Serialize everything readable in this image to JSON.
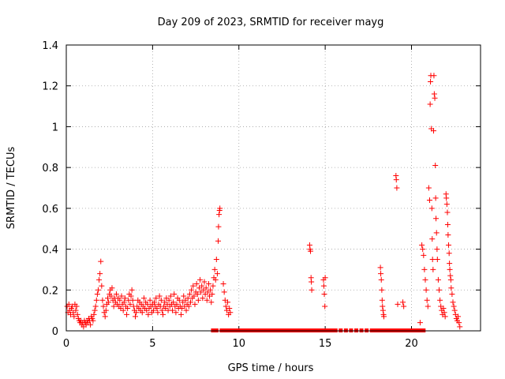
{
  "chart_data": {
    "type": "scatter",
    "title": "Day 209 of 2023, SRMTID for receiver mayg",
    "xlabel": "GPS time / hours",
    "ylabel": "SRMTID / TECUs",
    "xlim": [
      0,
      24
    ],
    "ylim": [
      0,
      1.4
    ],
    "xticks": [
      "0",
      "5",
      "10",
      "15",
      "20"
    ],
    "yticks": [
      "0",
      "0.2",
      "0.4",
      "0.6",
      "0.8",
      "1",
      "1.2",
      "1.4"
    ],
    "grid": true,
    "marker_color": "#ff0000",
    "series": [
      {
        "name": "SRMTID",
        "points": [
          [
            0.05,
            0.12
          ],
          [
            0.1,
            0.09
          ],
          [
            0.15,
            0.13
          ],
          [
            0.2,
            0.1
          ],
          [
            0.25,
            0.08
          ],
          [
            0.3,
            0.11
          ],
          [
            0.35,
            0.12
          ],
          [
            0.4,
            0.09
          ],
          [
            0.45,
            0.07
          ],
          [
            0.5,
            0.13
          ],
          [
            0.55,
            0.1
          ],
          [
            0.6,
            0.12
          ],
          [
            0.65,
            0.08
          ],
          [
            0.7,
            0.06
          ],
          [
            0.75,
            0.05
          ],
          [
            0.8,
            0.04
          ],
          [
            0.85,
            0.05
          ],
          [
            0.9,
            0.03
          ],
          [
            0.95,
            0.04
          ],
          [
            1.0,
            0.02
          ],
          [
            1.05,
            0.05
          ],
          [
            1.1,
            0.04
          ],
          [
            1.15,
            0.03
          ],
          [
            1.2,
            0.05
          ],
          [
            1.25,
            0.04
          ],
          [
            1.3,
            0.06
          ],
          [
            1.35,
            0.05
          ],
          [
            1.4,
            0.03
          ],
          [
            1.45,
            0.07
          ],
          [
            1.5,
            0.06
          ],
          [
            1.55,
            0.05
          ],
          [
            1.6,
            0.08
          ],
          [
            1.65,
            0.1
          ],
          [
            1.7,
            0.12
          ],
          [
            1.75,
            0.15
          ],
          [
            1.8,
            0.18
          ],
          [
            1.85,
            0.2
          ],
          [
            1.9,
            0.25
          ],
          [
            1.95,
            0.28
          ],
          [
            2.0,
            0.34
          ],
          [
            2.05,
            0.22
          ],
          [
            2.1,
            0.15
          ],
          [
            2.15,
            0.12
          ],
          [
            2.2,
            0.09
          ],
          [
            2.25,
            0.07
          ],
          [
            2.3,
            0.1
          ],
          [
            2.35,
            0.13
          ],
          [
            2.4,
            0.16
          ],
          [
            2.45,
            0.14
          ],
          [
            2.5,
            0.18
          ],
          [
            2.55,
            0.2
          ],
          [
            2.6,
            0.17
          ],
          [
            2.65,
            0.21
          ],
          [
            2.7,
            0.15
          ],
          [
            2.75,
            0.12
          ],
          [
            2.8,
            0.16
          ],
          [
            2.85,
            0.14
          ],
          [
            2.9,
            0.18
          ],
          [
            2.95,
            0.13
          ],
          [
            3.0,
            0.16
          ],
          [
            3.05,
            0.12
          ],
          [
            3.1,
            0.15
          ],
          [
            3.15,
            0.11
          ],
          [
            3.2,
            0.17
          ],
          [
            3.25,
            0.13
          ],
          [
            3.3,
            0.1
          ],
          [
            3.35,
            0.14
          ],
          [
            3.4,
            0.16
          ],
          [
            3.45,
            0.12
          ],
          [
            3.5,
            0.08
          ],
          [
            3.55,
            0.11
          ],
          [
            3.6,
            0.15
          ],
          [
            3.65,
            0.18
          ],
          [
            3.7,
            0.13
          ],
          [
            3.75,
            0.17
          ],
          [
            3.8,
            0.2
          ],
          [
            3.85,
            0.15
          ],
          [
            3.9,
            0.12
          ],
          [
            3.95,
            0.1
          ],
          [
            4.0,
            0.07
          ],
          [
            4.05,
            0.09
          ],
          [
            4.1,
            0.12
          ],
          [
            4.15,
            0.15
          ],
          [
            4.2,
            0.11
          ],
          [
            4.25,
            0.14
          ],
          [
            4.3,
            0.1
          ],
          [
            4.35,
            0.13
          ],
          [
            4.4,
            0.09
          ],
          [
            4.45,
            0.12
          ],
          [
            4.5,
            0.16
          ],
          [
            4.55,
            0.11
          ],
          [
            4.6,
            0.14
          ],
          [
            4.65,
            0.1
          ],
          [
            4.7,
            0.13
          ],
          [
            4.75,
            0.08
          ],
          [
            4.8,
            0.11
          ],
          [
            4.85,
            0.15
          ],
          [
            4.9,
            0.12
          ],
          [
            4.95,
            0.09
          ],
          [
            5.0,
            0.13
          ],
          [
            5.05,
            0.1
          ],
          [
            5.1,
            0.14
          ],
          [
            5.15,
            0.12
          ],
          [
            5.2,
            0.16
          ],
          [
            5.25,
            0.11
          ],
          [
            5.3,
            0.09
          ],
          [
            5.35,
            0.13
          ],
          [
            5.4,
            0.17
          ],
          [
            5.45,
            0.12
          ],
          [
            5.5,
            0.15
          ],
          [
            5.55,
            0.1
          ],
          [
            5.6,
            0.08
          ],
          [
            5.65,
            0.12
          ],
          [
            5.7,
            0.14
          ],
          [
            5.75,
            0.11
          ],
          [
            5.8,
            0.16
          ],
          [
            5.85,
            0.13
          ],
          [
            5.9,
            0.1
          ],
          [
            5.95,
            0.15
          ],
          [
            6.0,
            0.12
          ],
          [
            6.05,
            0.17
          ],
          [
            6.1,
            0.13
          ],
          [
            6.15,
            0.1
          ],
          [
            6.2,
            0.14
          ],
          [
            6.25,
            0.18
          ],
          [
            6.3,
            0.12
          ],
          [
            6.35,
            0.09
          ],
          [
            6.4,
            0.13
          ],
          [
            6.45,
            0.16
          ],
          [
            6.5,
            0.11
          ],
          [
            6.55,
            0.15
          ],
          [
            6.6,
            0.12
          ],
          [
            6.65,
            0.08
          ],
          [
            6.7,
            0.11
          ],
          [
            6.75,
            0.14
          ],
          [
            6.8,
            0.17
          ],
          [
            6.85,
            0.12
          ],
          [
            6.9,
            0.15
          ],
          [
            6.95,
            0.1
          ],
          [
            7.0,
            0.13
          ],
          [
            7.05,
            0.16
          ],
          [
            7.1,
            0.12
          ],
          [
            7.15,
            0.18
          ],
          [
            7.2,
            0.14
          ],
          [
            7.25,
            0.2
          ],
          [
            7.3,
            0.16
          ],
          [
            7.35,
            0.22
          ],
          [
            7.4,
            0.17
          ],
          [
            7.45,
            0.13
          ],
          [
            7.5,
            0.19
          ],
          [
            7.55,
            0.23
          ],
          [
            7.6,
            0.18
          ],
          [
            7.65,
            0.15
          ],
          [
            7.7,
            0.21
          ],
          [
            7.75,
            0.25
          ],
          [
            7.8,
            0.19
          ],
          [
            7.85,
            0.22
          ],
          [
            7.9,
            0.16
          ],
          [
            7.95,
            0.2
          ],
          [
            8.0,
            0.24
          ],
          [
            8.05,
            0.18
          ],
          [
            8.1,
            0.21
          ],
          [
            8.15,
            0.15
          ],
          [
            8.2,
            0.19
          ],
          [
            8.25,
            0.23
          ],
          [
            8.3,
            0.17
          ],
          [
            8.35,
            0.2
          ],
          [
            8.4,
            0.14
          ],
          [
            8.45,
            0.18
          ],
          [
            8.5,
            0.22
          ],
          [
            8.55,
            0.26
          ],
          [
            8.6,
            0.3
          ],
          [
            8.65,
            0.25
          ],
          [
            8.7,
            0.35
          ],
          [
            8.75,
            0.28
          ],
          [
            8.8,
            0.44
          ],
          [
            8.82,
            0.51
          ],
          [
            8.85,
            0.57
          ],
          [
            8.88,
            0.59
          ],
          [
            8.9,
            0.6
          ],
          [
            9.1,
            0.23
          ],
          [
            9.15,
            0.19
          ],
          [
            9.2,
            0.15
          ],
          [
            9.25,
            0.12
          ],
          [
            9.3,
            0.1
          ],
          [
            9.35,
            0.14
          ],
          [
            9.4,
            0.08
          ],
          [
            9.45,
            0.11
          ],
          [
            9.5,
            0.09
          ],
          [
            14.1,
            0.42
          ],
          [
            14.12,
            0.4
          ],
          [
            14.15,
            0.39
          ],
          [
            14.18,
            0.26
          ],
          [
            14.2,
            0.24
          ],
          [
            14.22,
            0.2
          ],
          [
            14.9,
            0.25
          ],
          [
            14.92,
            0.22
          ],
          [
            14.95,
            0.18
          ],
          [
            14.98,
            0.12
          ],
          [
            15.0,
            0.26
          ],
          [
            18.2,
            0.31
          ],
          [
            18.22,
            0.28
          ],
          [
            18.25,
            0.25
          ],
          [
            18.28,
            0.2
          ],
          [
            18.3,
            0.15
          ],
          [
            18.32,
            0.12
          ],
          [
            18.35,
            0.1
          ],
          [
            18.38,
            0.08
          ],
          [
            18.4,
            0.07
          ],
          [
            19.1,
            0.76
          ],
          [
            19.12,
            0.74
          ],
          [
            19.15,
            0.7
          ],
          [
            19.2,
            0.13
          ],
          [
            19.5,
            0.14
          ],
          [
            19.55,
            0.12
          ],
          [
            20.5,
            0.04
          ],
          [
            20.6,
            0.42
          ],
          [
            20.65,
            0.4
          ],
          [
            20.7,
            0.37
          ],
          [
            20.75,
            0.3
          ],
          [
            20.8,
            0.25
          ],
          [
            20.85,
            0.2
          ],
          [
            20.9,
            0.15
          ],
          [
            20.95,
            0.12
          ],
          [
            21.0,
            0.7
          ],
          [
            21.05,
            0.64
          ],
          [
            21.08,
            1.11
          ],
          [
            21.1,
            1.22
          ],
          [
            21.12,
            1.25
          ],
          [
            21.15,
            0.99
          ],
          [
            21.18,
            0.6
          ],
          [
            21.2,
            0.45
          ],
          [
            21.22,
            0.35
          ],
          [
            21.25,
            0.3
          ],
          [
            21.28,
            0.98
          ],
          [
            21.3,
            1.25
          ],
          [
            21.32,
            1.16
          ],
          [
            21.35,
            1.14
          ],
          [
            21.38,
            0.81
          ],
          [
            21.4,
            0.65
          ],
          [
            21.42,
            0.55
          ],
          [
            21.45,
            0.48
          ],
          [
            21.48,
            0.4
          ],
          [
            21.5,
            0.35
          ],
          [
            21.55,
            0.25
          ],
          [
            21.6,
            0.2
          ],
          [
            21.65,
            0.15
          ],
          [
            21.7,
            0.12
          ],
          [
            21.75,
            0.1
          ],
          [
            21.8,
            0.08
          ],
          [
            21.85,
            0.11
          ],
          [
            21.9,
            0.09
          ],
          [
            21.95,
            0.07
          ],
          [
            22.0,
            0.67
          ],
          [
            22.02,
            0.65
          ],
          [
            22.05,
            0.62
          ],
          [
            22.08,
            0.58
          ],
          [
            22.1,
            0.52
          ],
          [
            22.12,
            0.47
          ],
          [
            22.15,
            0.42
          ],
          [
            22.18,
            0.38
          ],
          [
            22.2,
            0.33
          ],
          [
            22.22,
            0.3
          ],
          [
            22.25,
            0.27
          ],
          [
            22.28,
            0.25
          ],
          [
            22.3,
            0.21
          ],
          [
            22.35,
            0.18
          ],
          [
            22.4,
            0.14
          ],
          [
            22.45,
            0.12
          ],
          [
            22.5,
            0.1
          ],
          [
            22.55,
            0.08
          ],
          [
            22.6,
            0.06
          ],
          [
            22.65,
            0.05
          ],
          [
            22.7,
            0.07
          ],
          [
            22.75,
            0.04
          ],
          [
            22.8,
            0.02
          ]
        ]
      }
    ],
    "zero_markers_x": [
      8.5,
      8.7,
      9.0,
      9.2,
      9.4,
      9.6,
      9.8,
      10.0,
      10.2,
      10.4,
      10.6,
      10.8,
      11.0,
      11.2,
      11.4,
      11.6,
      11.8,
      12.0,
      12.2,
      12.4,
      12.6,
      12.8,
      13.0,
      13.2,
      13.4,
      13.6,
      13.8,
      14.0,
      14.2,
      14.4,
      14.6,
      14.8,
      15.0,
      15.2,
      15.4,
      15.6,
      15.9,
      16.2,
      16.5,
      16.8,
      17.1,
      17.4,
      17.7,
      17.9,
      18.1,
      18.3,
      18.5,
      18.7,
      18.9,
      19.1,
      19.3,
      19.5,
      19.7,
      19.9,
      20.1,
      20.3,
      20.5,
      20.7
    ]
  }
}
